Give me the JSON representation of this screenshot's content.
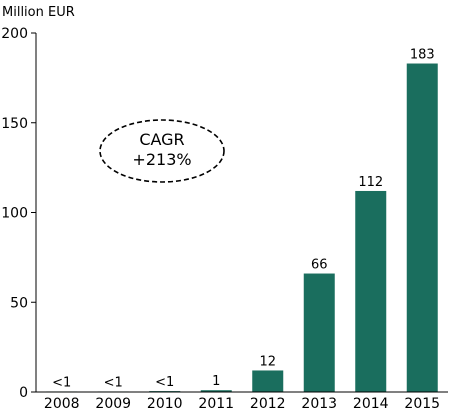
{
  "chart_data": {
    "type": "bar",
    "unit_label": "Million EUR",
    "title": "",
    "xlabel": "",
    "ylabel": "",
    "categories": [
      "2008",
      "2009",
      "2010",
      "2011",
      "2012",
      "2013",
      "2014",
      "2015"
    ],
    "values": [
      0.3,
      0.3,
      0.5,
      1,
      12,
      66,
      112,
      183
    ],
    "data_labels": [
      "<1",
      "<1",
      "<1",
      "1",
      "12",
      "66",
      "112",
      "183"
    ],
    "ylim": [
      0,
      200
    ],
    "yticks": [
      0,
      50,
      100,
      150,
      200
    ],
    "ytick_labels": [
      "0",
      "50",
      "100",
      "150",
      "200"
    ],
    "bar_color": "#1a6e5e",
    "grid": false,
    "annotation": {
      "lines": [
        "CAGR",
        "+213%"
      ],
      "shape": "dashed-ellipse"
    }
  }
}
